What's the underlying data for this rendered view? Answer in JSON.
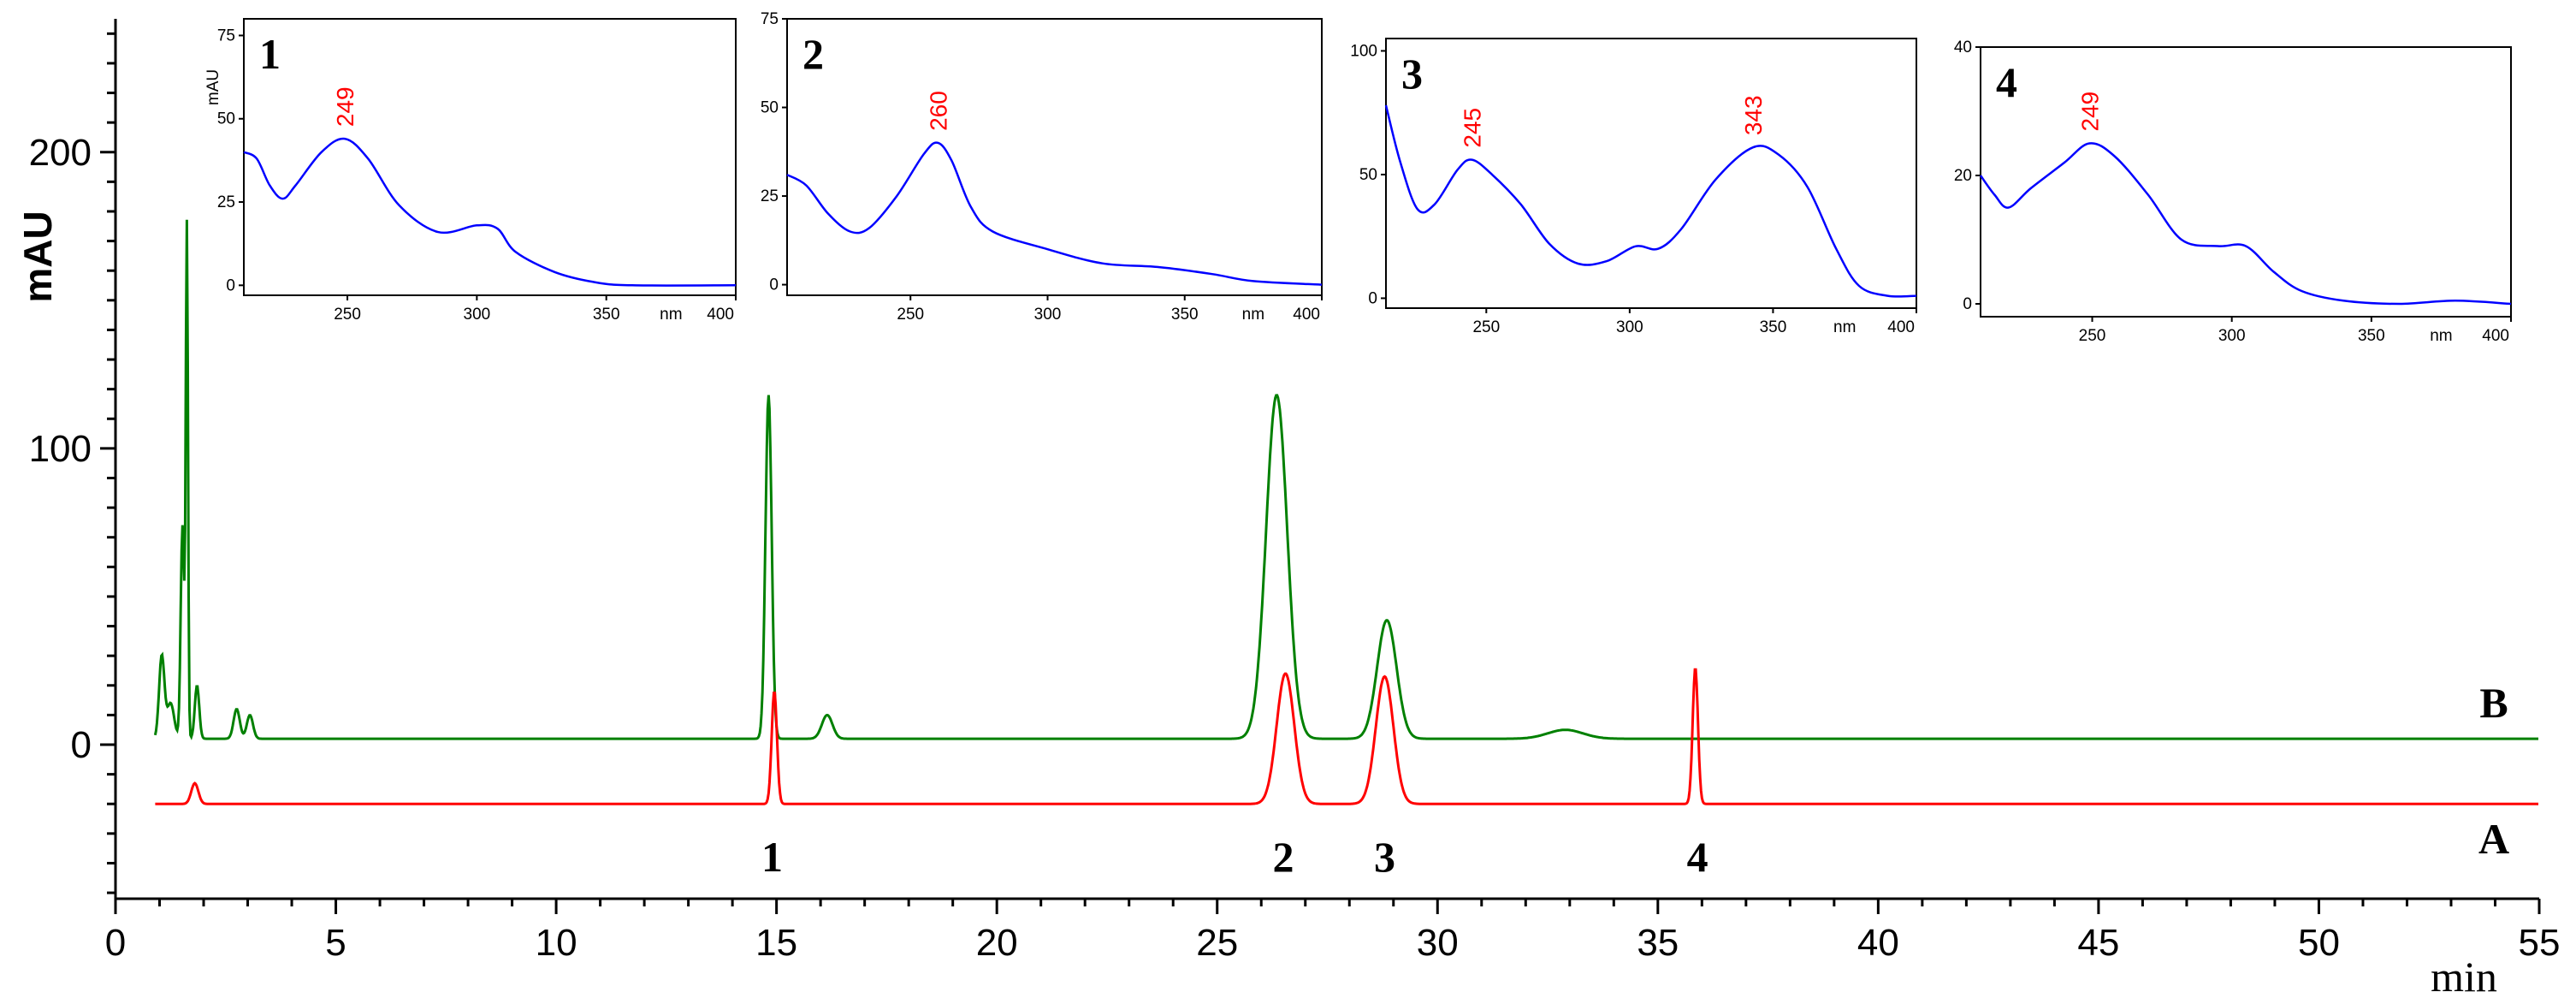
{
  "chart_data": {
    "type": "line",
    "title": "",
    "xlabel": "min",
    "ylabel": "mAU",
    "xlim": [
      0,
      55
    ],
    "ylim": [
      -52,
      245
    ],
    "x_ticks": [
      "0",
      "5",
      "10",
      "15",
      "20",
      "25",
      "30",
      "35",
      "40",
      "45",
      "50",
      "55"
    ],
    "y_ticks": [
      "0",
      "100",
      "200"
    ],
    "series": [
      {
        "name": "B",
        "color": "#008000",
        "baseline": 2,
        "peaks": [
          {
            "t": 1.05,
            "h": 28,
            "w": 0.06
          },
          {
            "t": 1.25,
            "h": 12,
            "w": 0.08
          },
          {
            "t": 1.62,
            "h": 172,
            "w": 0.025
          },
          {
            "t": 1.52,
            "h": 72,
            "w": 0.04
          },
          {
            "t": 1.85,
            "h": 18,
            "w": 0.05
          },
          {
            "t": 2.75,
            "h": 10,
            "w": 0.07
          },
          {
            "t": 3.05,
            "h": 8,
            "w": 0.07
          },
          {
            "t": 14.82,
            "h": 116,
            "w": 0.07
          },
          {
            "t": 16.15,
            "h": 8,
            "w": 0.12
          },
          {
            "t": 26.35,
            "h": 116,
            "w": 0.24
          },
          {
            "t": 28.85,
            "h": 40,
            "w": 0.22
          },
          {
            "t": 32.9,
            "h": 3,
            "w": 0.4
          }
        ]
      },
      {
        "name": "A",
        "color": "#ff0000",
        "baseline": -20,
        "peaks": [
          {
            "t": 1.8,
            "h": 7,
            "w": 0.08
          },
          {
            "t": 14.95,
            "h": 38,
            "w": 0.06
          },
          {
            "t": 26.55,
            "h": 44,
            "w": 0.2
          },
          {
            "t": 28.8,
            "h": 43,
            "w": 0.2
          },
          {
            "t": 35.85,
            "h": 46,
            "w": 0.06
          }
        ]
      }
    ],
    "peak_labels": [
      {
        "text": "1",
        "t": 14.9
      },
      {
        "text": "2",
        "t": 26.5
      },
      {
        "text": "3",
        "t": 28.8
      },
      {
        "text": "4",
        "t": 35.9
      }
    ],
    "trace_labels": [
      "B",
      "A"
    ],
    "insets": [
      {
        "label": "1",
        "ylabel": "mAU",
        "y_ticks": [
          "0",
          "25",
          "50",
          "75"
        ],
        "ylim": [
          -3,
          80
        ],
        "x_ticks": [
          "250",
          "300",
          "350",
          "400"
        ],
        "x_unit": "nm",
        "xlim": [
          210,
          400
        ],
        "peak_label": "249",
        "peak_x": 249,
        "color": "#0000ff",
        "points": [
          [
            210,
            40
          ],
          [
            215,
            38
          ],
          [
            220,
            30
          ],
          [
            225,
            26
          ],
          [
            230,
            30
          ],
          [
            240,
            40
          ],
          [
            249,
            44
          ],
          [
            258,
            38
          ],
          [
            270,
            24
          ],
          [
            285,
            16
          ],
          [
            300,
            18
          ],
          [
            308,
            17
          ],
          [
            315,
            10
          ],
          [
            330,
            4
          ],
          [
            345,
            1
          ],
          [
            360,
            0
          ],
          [
            400,
            0
          ]
        ]
      },
      {
        "label": "2",
        "ylabel": "",
        "y_ticks": [
          "0",
          "25",
          "50",
          "75"
        ],
        "ylim": [
          -3,
          75
        ],
        "x_ticks": [
          "250",
          "300",
          "350",
          "400"
        ],
        "x_unit": "nm",
        "xlim": [
          205,
          400
        ],
        "peak_label": "260",
        "peak_x": 260,
        "color": "#0000ff",
        "points": [
          [
            205,
            31
          ],
          [
            212,
            28
          ],
          [
            220,
            20
          ],
          [
            228,
            15
          ],
          [
            235,
            16
          ],
          [
            245,
            25
          ],
          [
            255,
            37
          ],
          [
            260,
            40
          ],
          [
            265,
            35
          ],
          [
            272,
            22
          ],
          [
            280,
            15
          ],
          [
            300,
            10
          ],
          [
            320,
            6
          ],
          [
            340,
            5
          ],
          [
            360,
            3
          ],
          [
            375,
            1
          ],
          [
            400,
            0
          ]
        ]
      },
      {
        "label": "3",
        "ylabel": "",
        "y_ticks": [
          "0",
          "50",
          "100"
        ],
        "ylim": [
          -4,
          105
        ],
        "x_ticks": [
          "250",
          "300",
          "350",
          "400"
        ],
        "x_unit": "nm",
        "xlim": [
          215,
          400
        ],
        "peak_label": "245",
        "peak_x": 245,
        "peak_label_2": "343",
        "peak_x_2": 343,
        "color": "#0000ff",
        "points": [
          [
            215,
            78
          ],
          [
            220,
            55
          ],
          [
            226,
            36
          ],
          [
            232,
            38
          ],
          [
            240,
            52
          ],
          [
            245,
            56
          ],
          [
            252,
            50
          ],
          [
            262,
            38
          ],
          [
            272,
            22
          ],
          [
            282,
            14
          ],
          [
            292,
            15
          ],
          [
            302,
            21
          ],
          [
            310,
            20
          ],
          [
            318,
            28
          ],
          [
            330,
            48
          ],
          [
            343,
            61
          ],
          [
            352,
            58
          ],
          [
            362,
            45
          ],
          [
            372,
            20
          ],
          [
            380,
            5
          ],
          [
            390,
            1
          ],
          [
            400,
            1
          ]
        ]
      },
      {
        "label": "4",
        "ylabel": "",
        "y_ticks": [
          "0",
          "20",
          "40"
        ],
        "ylim": [
          -2,
          40
        ],
        "x_ticks": [
          "250",
          "300",
          "350",
          "400"
        ],
        "x_unit": "nm",
        "xlim": [
          210,
          400
        ],
        "peak_label": "249",
        "peak_x": 249,
        "color": "#0000ff",
        "points": [
          [
            210,
            20
          ],
          [
            215,
            17
          ],
          [
            220,
            15
          ],
          [
            228,
            18
          ],
          [
            240,
            22
          ],
          [
            249,
            25
          ],
          [
            258,
            23
          ],
          [
            270,
            17
          ],
          [
            282,
            10
          ],
          [
            295,
            9
          ],
          [
            305,
            9
          ],
          [
            315,
            5
          ],
          [
            325,
            2
          ],
          [
            340,
            0.5
          ],
          [
            360,
            0
          ],
          [
            380,
            0.5
          ],
          [
            400,
            0
          ]
        ]
      }
    ]
  }
}
